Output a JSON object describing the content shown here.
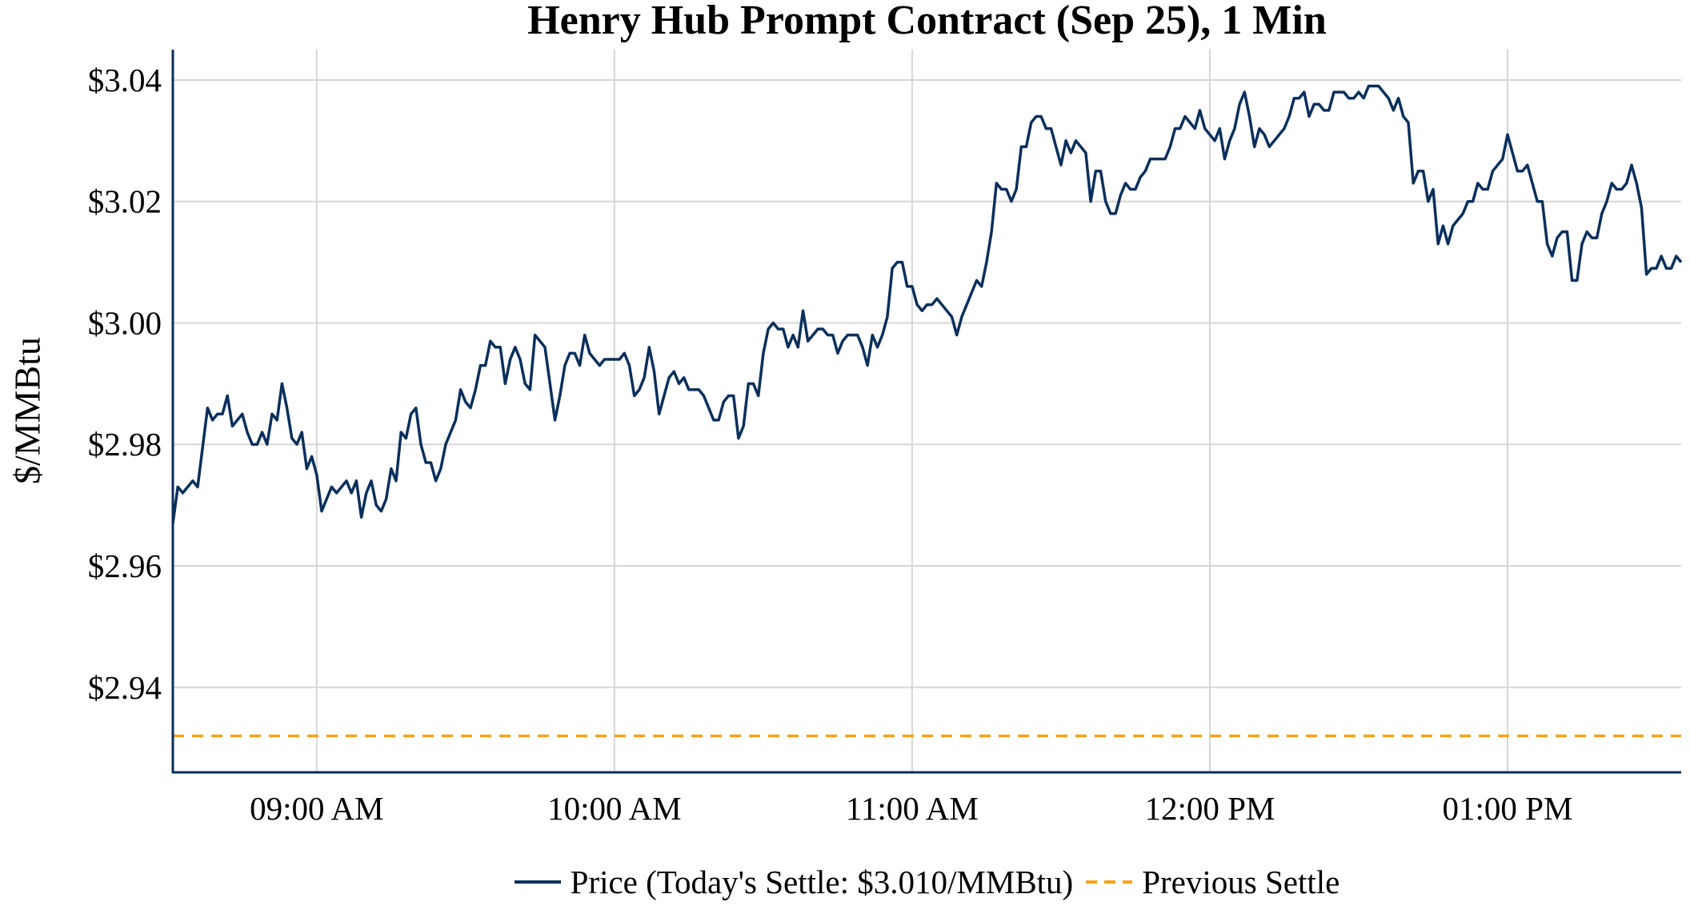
{
  "chart_data": {
    "type": "line",
    "title": "Henry Hub Prompt Contract (Sep 25), 1 Min",
    "xlabel": "",
    "ylabel": "$/MMBtu",
    "xlim": [
      "08:31",
      "13:35"
    ],
    "ylim": [
      2.926,
      3.045
    ],
    "x_ticks": [
      "09:00",
      "10:00",
      "11:00",
      "12:00",
      "13:00"
    ],
    "x_tick_labels": [
      "09:00 AM",
      "10:00 AM",
      "11:00 AM",
      "12:00 PM",
      "01:00 PM"
    ],
    "y_ticks": [
      2.94,
      2.96,
      2.98,
      3.0,
      3.02,
      3.04
    ],
    "y_tick_labels": [
      "$2.94",
      "$2.96",
      "$2.98",
      "$3.00",
      "$3.02",
      "$3.04"
    ],
    "grid": true,
    "legend_position": "bottom",
    "colors": {
      "price": "#0a2f5c",
      "previous_settle": "#f5a31a",
      "axis": "#0b2d5b",
      "grid": "#d6d6d6"
    },
    "series": [
      {
        "name": "Price (Today's Settle: $3.010/MMBtu)",
        "style": "solid",
        "points": [
          [
            "08:31",
            2.967
          ],
          [
            "08:32",
            2.973
          ],
          [
            "08:33",
            2.972
          ],
          [
            "08:35",
            2.974
          ],
          [
            "08:36",
            2.973
          ],
          [
            "08:38",
            2.986
          ],
          [
            "08:39",
            2.984
          ],
          [
            "08:40",
            2.985
          ],
          [
            "08:41",
            2.985
          ],
          [
            "08:42",
            2.988
          ],
          [
            "08:43",
            2.983
          ],
          [
            "08:45",
            2.985
          ],
          [
            "08:46",
            2.982
          ],
          [
            "08:47",
            2.98
          ],
          [
            "08:48",
            2.98
          ],
          [
            "08:49",
            2.982
          ],
          [
            "08:50",
            2.98
          ],
          [
            "08:51",
            2.985
          ],
          [
            "08:52",
            2.984
          ],
          [
            "08:53",
            2.99
          ],
          [
            "08:54",
            2.986
          ],
          [
            "08:55",
            2.981
          ],
          [
            "08:56",
            2.98
          ],
          [
            "08:57",
            2.982
          ],
          [
            "08:58",
            2.976
          ],
          [
            "08:59",
            2.978
          ],
          [
            "09:00",
            2.975
          ],
          [
            "09:01",
            2.969
          ],
          [
            "09:02",
            2.971
          ],
          [
            "09:03",
            2.973
          ],
          [
            "09:04",
            2.972
          ],
          [
            "09:06",
            2.974
          ],
          [
            "09:07",
            2.972
          ],
          [
            "09:08",
            2.974
          ],
          [
            "09:09",
            2.968
          ],
          [
            "09:10",
            2.972
          ],
          [
            "09:11",
            2.974
          ],
          [
            "09:12",
            2.97
          ],
          [
            "09:13",
            2.969
          ],
          [
            "09:14",
            2.971
          ],
          [
            "09:15",
            2.976
          ],
          [
            "09:16",
            2.974
          ],
          [
            "09:17",
            2.982
          ],
          [
            "09:18",
            2.981
          ],
          [
            "09:19",
            2.985
          ],
          [
            "09:20",
            2.986
          ],
          [
            "09:21",
            2.98
          ],
          [
            "09:22",
            2.977
          ],
          [
            "09:23",
            2.977
          ],
          [
            "09:24",
            2.974
          ],
          [
            "09:25",
            2.976
          ],
          [
            "09:26",
            2.98
          ],
          [
            "09:28",
            2.984
          ],
          [
            "09:29",
            2.989
          ],
          [
            "09:30",
            2.987
          ],
          [
            "09:31",
            2.986
          ],
          [
            "09:32",
            2.989
          ],
          [
            "09:33",
            2.993
          ],
          [
            "09:34",
            2.993
          ],
          [
            "09:35",
            2.997
          ],
          [
            "09:36",
            2.996
          ],
          [
            "09:37",
            2.996
          ],
          [
            "09:38",
            2.99
          ],
          [
            "09:39",
            2.994
          ],
          [
            "09:40",
            2.996
          ],
          [
            "09:41",
            2.994
          ],
          [
            "09:42",
            2.99
          ],
          [
            "09:43",
            2.989
          ],
          [
            "09:44",
            2.998
          ],
          [
            "09:46",
            2.996
          ],
          [
            "09:47",
            2.99
          ],
          [
            "09:48",
            2.984
          ],
          [
            "09:49",
            2.988
          ],
          [
            "09:50",
            2.993
          ],
          [
            "09:51",
            2.995
          ],
          [
            "09:52",
            2.995
          ],
          [
            "09:53",
            2.993
          ],
          [
            "09:54",
            2.998
          ],
          [
            "09:55",
            2.995
          ],
          [
            "09:56",
            2.994
          ],
          [
            "09:57",
            2.993
          ],
          [
            "09:58",
            2.994
          ],
          [
            "10:01",
            2.994
          ],
          [
            "10:02",
            2.995
          ],
          [
            "10:03",
            2.993
          ],
          [
            "10:04",
            2.988
          ],
          [
            "10:05",
            2.989
          ],
          [
            "10:06",
            2.991
          ],
          [
            "10:07",
            2.996
          ],
          [
            "10:08",
            2.992
          ],
          [
            "10:09",
            2.985
          ],
          [
            "10:10",
            2.988
          ],
          [
            "10:11",
            2.991
          ],
          [
            "10:12",
            2.992
          ],
          [
            "10:13",
            2.99
          ],
          [
            "10:14",
            2.991
          ],
          [
            "10:15",
            2.989
          ],
          [
            "10:17",
            2.989
          ],
          [
            "10:18",
            2.988
          ],
          [
            "10:19",
            2.986
          ],
          [
            "10:20",
            2.984
          ],
          [
            "10:21",
            2.984
          ],
          [
            "10:22",
            2.987
          ],
          [
            "10:23",
            2.988
          ],
          [
            "10:24",
            2.988
          ],
          [
            "10:25",
            2.981
          ],
          [
            "10:26",
            2.983
          ],
          [
            "10:27",
            2.99
          ],
          [
            "10:28",
            2.99
          ],
          [
            "10:29",
            2.988
          ],
          [
            "10:30",
            2.995
          ],
          [
            "10:31",
            2.999
          ],
          [
            "10:32",
            3.0
          ],
          [
            "10:33",
            2.999
          ],
          [
            "10:34",
            2.999
          ],
          [
            "10:35",
            2.996
          ],
          [
            "10:36",
            2.998
          ],
          [
            "10:37",
            2.996
          ],
          [
            "10:38",
            3.002
          ],
          [
            "10:39",
            2.997
          ],
          [
            "10:40",
            2.998
          ],
          [
            "10:41",
            2.999
          ],
          [
            "10:42",
            2.999
          ],
          [
            "10:43",
            2.998
          ],
          [
            "10:44",
            2.998
          ],
          [
            "10:45",
            2.995
          ],
          [
            "10:46",
            2.997
          ],
          [
            "10:47",
            2.998
          ],
          [
            "10:49",
            2.998
          ],
          [
            "10:50",
            2.996
          ],
          [
            "10:51",
            2.993
          ],
          [
            "10:52",
            2.998
          ],
          [
            "10:53",
            2.996
          ],
          [
            "10:54",
            2.998
          ],
          [
            "10:55",
            3.001
          ],
          [
            "10:56",
            3.009
          ],
          [
            "10:57",
            3.01
          ],
          [
            "10:58",
            3.01
          ],
          [
            "10:59",
            3.006
          ],
          [
            "11:00",
            3.006
          ],
          [
            "11:01",
            3.003
          ],
          [
            "11:02",
            3.002
          ],
          [
            "11:03",
            3.003
          ],
          [
            "11:04",
            3.003
          ],
          [
            "11:05",
            3.004
          ],
          [
            "11:06",
            3.003
          ],
          [
            "11:07",
            3.002
          ],
          [
            "11:08",
            3.001
          ],
          [
            "11:09",
            2.998
          ],
          [
            "11:10",
            3.001
          ],
          [
            "11:11",
            3.003
          ],
          [
            "11:12",
            3.005
          ],
          [
            "11:13",
            3.007
          ],
          [
            "11:14",
            3.006
          ],
          [
            "11:15",
            3.01
          ],
          [
            "11:16",
            3.015
          ],
          [
            "11:17",
            3.023
          ],
          [
            "11:18",
            3.022
          ],
          [
            "11:19",
            3.022
          ],
          [
            "11:20",
            3.02
          ],
          [
            "11:21",
            3.022
          ],
          [
            "11:22",
            3.029
          ],
          [
            "11:23",
            3.029
          ],
          [
            "11:24",
            3.033
          ],
          [
            "11:25",
            3.034
          ],
          [
            "11:26",
            3.034
          ],
          [
            "11:27",
            3.032
          ],
          [
            "11:28",
            3.032
          ],
          [
            "11:29",
            3.029
          ],
          [
            "11:30",
            3.026
          ],
          [
            "11:31",
            3.03
          ],
          [
            "11:32",
            3.028
          ],
          [
            "11:33",
            3.03
          ],
          [
            "11:35",
            3.028
          ],
          [
            "11:36",
            3.02
          ],
          [
            "11:37",
            3.025
          ],
          [
            "11:38",
            3.025
          ],
          [
            "11:39",
            3.02
          ],
          [
            "11:40",
            3.018
          ],
          [
            "11:41",
            3.018
          ],
          [
            "11:42",
            3.021
          ],
          [
            "11:43",
            3.023
          ],
          [
            "11:44",
            3.022
          ],
          [
            "11:45",
            3.022
          ],
          [
            "11:46",
            3.024
          ],
          [
            "11:47",
            3.025
          ],
          [
            "11:48",
            3.027
          ],
          [
            "11:51",
            3.027
          ],
          [
            "11:52",
            3.029
          ],
          [
            "11:53",
            3.032
          ],
          [
            "11:54",
            3.032
          ],
          [
            "11:55",
            3.034
          ],
          [
            "11:57",
            3.032
          ],
          [
            "11:58",
            3.035
          ],
          [
            "11:59",
            3.032
          ],
          [
            "12:00",
            3.031
          ],
          [
            "12:01",
            3.03
          ],
          [
            "12:02",
            3.032
          ],
          [
            "12:03",
            3.027
          ],
          [
            "12:04",
            3.03
          ],
          [
            "12:05",
            3.032
          ],
          [
            "12:06",
            3.036
          ],
          [
            "12:07",
            3.038
          ],
          [
            "12:08",
            3.034
          ],
          [
            "12:09",
            3.029
          ],
          [
            "12:10",
            3.032
          ],
          [
            "12:11",
            3.031
          ],
          [
            "12:12",
            3.029
          ],
          [
            "12:13",
            3.03
          ],
          [
            "12:14",
            3.031
          ],
          [
            "12:15",
            3.032
          ],
          [
            "12:16",
            3.034
          ],
          [
            "12:17",
            3.037
          ],
          [
            "12:18",
            3.037
          ],
          [
            "12:19",
            3.038
          ],
          [
            "12:20",
            3.034
          ],
          [
            "12:21",
            3.036
          ],
          [
            "12:22",
            3.036
          ],
          [
            "12:23",
            3.035
          ],
          [
            "12:24",
            3.035
          ],
          [
            "12:25",
            3.038
          ],
          [
            "12:27",
            3.038
          ],
          [
            "12:28",
            3.037
          ],
          [
            "12:29",
            3.037
          ],
          [
            "12:30",
            3.038
          ],
          [
            "12:31",
            3.037
          ],
          [
            "12:32",
            3.039
          ],
          [
            "12:34",
            3.039
          ],
          [
            "12:35",
            3.038
          ],
          [
            "12:36",
            3.037
          ],
          [
            "12:37",
            3.035
          ],
          [
            "12:38",
            3.037
          ],
          [
            "12:39",
            3.034
          ],
          [
            "12:40",
            3.033
          ],
          [
            "12:41",
            3.023
          ],
          [
            "12:42",
            3.025
          ],
          [
            "12:43",
            3.025
          ],
          [
            "12:44",
            3.02
          ],
          [
            "12:45",
            3.022
          ],
          [
            "12:46",
            3.013
          ],
          [
            "12:47",
            3.016
          ],
          [
            "12:48",
            3.013
          ],
          [
            "12:49",
            3.016
          ],
          [
            "12:50",
            3.017
          ],
          [
            "12:51",
            3.018
          ],
          [
            "12:52",
            3.02
          ],
          [
            "12:53",
            3.02
          ],
          [
            "12:54",
            3.023
          ],
          [
            "12:55",
            3.022
          ],
          [
            "12:56",
            3.022
          ],
          [
            "12:57",
            3.025
          ],
          [
            "12:58",
            3.026
          ],
          [
            "12:59",
            3.027
          ],
          [
            "13:00",
            3.031
          ],
          [
            "13:01",
            3.028
          ],
          [
            "13:02",
            3.025
          ],
          [
            "13:03",
            3.025
          ],
          [
            "13:04",
            3.026
          ],
          [
            "13:05",
            3.023
          ],
          [
            "13:06",
            3.02
          ],
          [
            "13:07",
            3.02
          ],
          [
            "13:08",
            3.013
          ],
          [
            "13:09",
            3.011
          ],
          [
            "13:10",
            3.014
          ],
          [
            "13:11",
            3.015
          ],
          [
            "13:12",
            3.015
          ],
          [
            "13:13",
            3.007
          ],
          [
            "13:14",
            3.007
          ],
          [
            "13:15",
            3.013
          ],
          [
            "13:16",
            3.015
          ],
          [
            "13:17",
            3.014
          ],
          [
            "13:18",
            3.014
          ],
          [
            "13:19",
            3.018
          ],
          [
            "13:20",
            3.02
          ],
          [
            "13:21",
            3.023
          ],
          [
            "13:22",
            3.022
          ],
          [
            "13:23",
            3.022
          ],
          [
            "13:24",
            3.023
          ],
          [
            "13:25",
            3.026
          ],
          [
            "13:26",
            3.023
          ],
          [
            "13:27",
            3.019
          ],
          [
            "13:28",
            3.008
          ],
          [
            "13:29",
            3.009
          ],
          [
            "13:30",
            3.009
          ],
          [
            "13:31",
            3.011
          ],
          [
            "13:32",
            3.009
          ],
          [
            "13:33",
            3.009
          ],
          [
            "13:34",
            3.011
          ],
          [
            "13:35",
            3.01
          ]
        ]
      },
      {
        "name": "Previous Settle",
        "style": "dashed",
        "value": 2.932
      }
    ]
  }
}
